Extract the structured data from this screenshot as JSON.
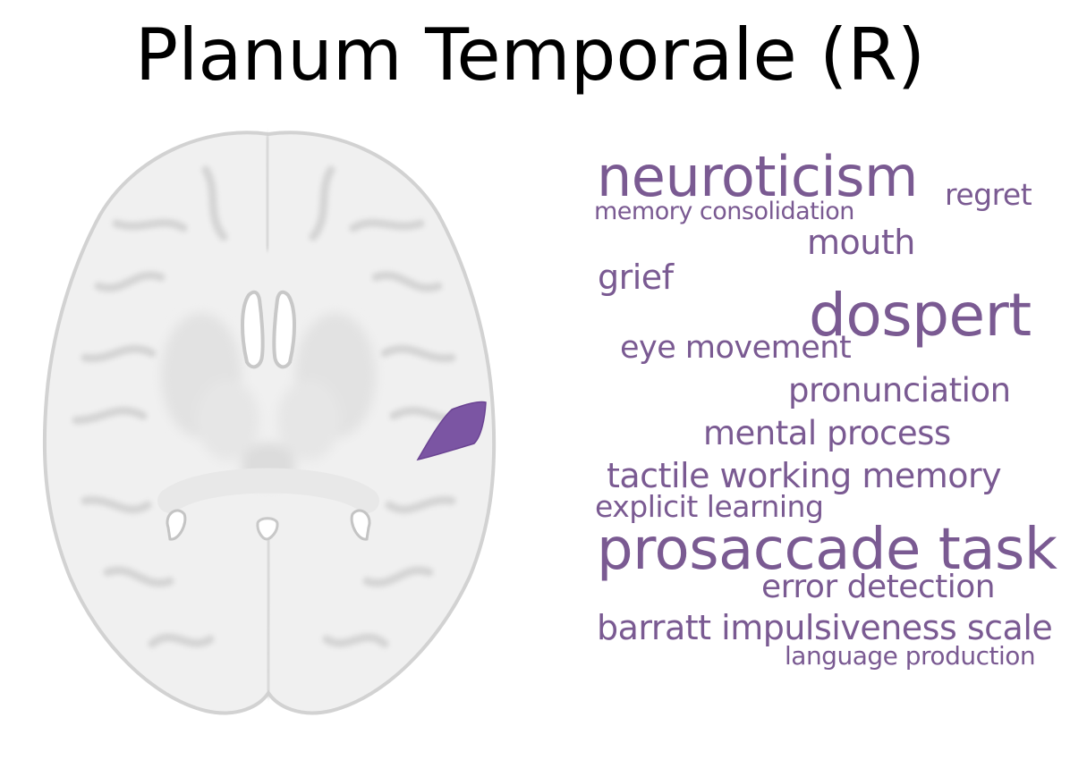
{
  "title": "Planum Temporale (R)",
  "colors": {
    "highlight": "#7b55a3",
    "word": "#7a5a92",
    "brain_fill": "#f1f1f1",
    "brain_outline": "#dadada"
  },
  "words": [
    {
      "text": "neuroticism"
    },
    {
      "text": "regret"
    },
    {
      "text": "memory consolidation"
    },
    {
      "text": "mouth"
    },
    {
      "text": "grief"
    },
    {
      "text": "dospert"
    },
    {
      "text": "eye movement"
    },
    {
      "text": "pronunciation"
    },
    {
      "text": "mental process"
    },
    {
      "text": "tactile working memory"
    },
    {
      "text": "explicit learning"
    },
    {
      "text": "prosaccade task"
    },
    {
      "text": "error detection"
    },
    {
      "text": "barratt impulsiveness scale"
    },
    {
      "text": "language production"
    }
  ]
}
